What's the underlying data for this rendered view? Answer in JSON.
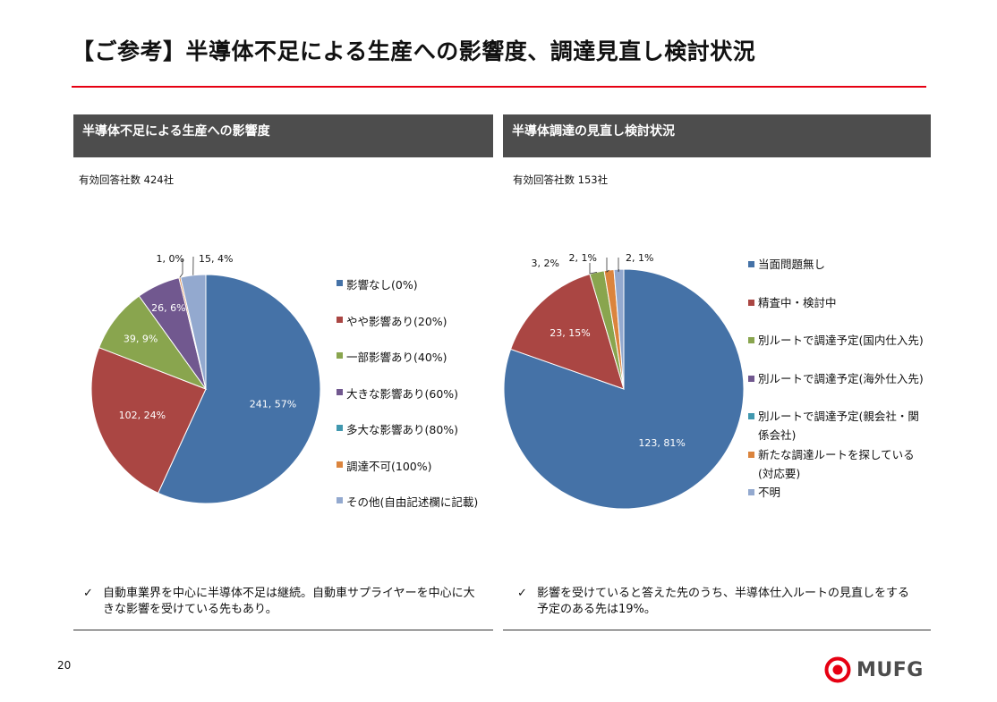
{
  "page": {
    "title": "【ご参考】半導体不足による生産への影響度、調達見直し検討状況",
    "page_number": "20",
    "logo_text": "MUFG",
    "accent_color": "#e60012"
  },
  "left_panel": {
    "header": "半導体不足による生産への影響度",
    "count_text": "有効回答社数 424社",
    "note": "自動車業界を中心に半導体不足は継続。自動車サプライヤーを中心に大きな影響を受けている先もあり。"
  },
  "right_panel": {
    "header": "半導体調達の見直し検討状況",
    "count_text": "有効回答社数 153社",
    "note": "影響を受けていると答えた先のうち、半導体仕入ルートの見直しをする予定のある先は19%。"
  },
  "check_mark": "✓",
  "chart_data": [
    {
      "type": "pie",
      "title": "半導体不足による生産への影響度",
      "categories": [
        "影響なし(0%)",
        "やや影響あり(20%)",
        "一部影響あり(40%)",
        "大きな影響あり(60%)",
        "多大な影響あり(80%)",
        "調達不可(100%)",
        "その他(自由記述欄に記載)"
      ],
      "values": [
        241,
        102,
        39,
        26,
        0,
        1,
        15
      ],
      "percent": [
        57,
        24,
        9,
        6,
        0,
        0,
        4
      ],
      "labels": [
        "241, 57%",
        "102, 24%",
        "39, 9%",
        "26, 6%",
        "",
        "1, 0%",
        "15, 4%"
      ],
      "colors": [
        "#4572a7",
        "#aa4643",
        "#89a54e",
        "#71588f",
        "#4198af",
        "#db843d",
        "#93a9cf"
      ],
      "legend": "right"
    },
    {
      "type": "pie",
      "title": "半導体調達の見直し検討状況",
      "categories": [
        "当面問題無し",
        "精査中・検討中",
        "別ルートで調達予定(国内仕入先)",
        "別ルートで調達予定(海外仕入先)",
        "別ルートで調達予定(親会社・関係会社)",
        "新たな調達ルートを探している(対応要)",
        "不明"
      ],
      "legend_lines": [
        [
          "当面問題無し"
        ],
        [
          "精査中・検討中"
        ],
        [
          "別ルートで調達予定(国内仕入先)"
        ],
        [
          "別ルートで調達予定(海外仕入先)"
        ],
        [
          "別ルートで調達予定(親会社・関",
          "係会社)"
        ],
        [
          "新たな調達ルートを探している",
          "(対応要)"
        ],
        [
          "不明"
        ]
      ],
      "values": [
        123,
        23,
        3,
        0,
        0,
        2,
        2
      ],
      "percent": [
        81,
        15,
        2,
        0,
        0,
        1,
        1
      ],
      "labels": [
        "123, 81%",
        "23, 15%",
        "3, 2%",
        "",
        "",
        "2, 1%",
        "2, 1%"
      ],
      "colors": [
        "#4572a7",
        "#aa4643",
        "#89a54e",
        "#71588f",
        "#4198af",
        "#db843d",
        "#93a9cf"
      ],
      "legend": "right"
    }
  ]
}
